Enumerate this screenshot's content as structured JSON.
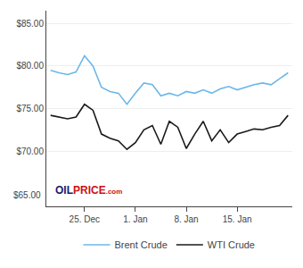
{
  "chart_data": {
    "type": "line",
    "categories": [
      null,
      null,
      null,
      null,
      "25. Dec",
      null,
      null,
      null,
      null,
      null,
      "1. Jan",
      null,
      null,
      null,
      null,
      null,
      "8. Jan",
      null,
      null,
      null,
      null,
      null,
      "15. Jan",
      null,
      null,
      null,
      null,
      null,
      null
    ],
    "series": [
      {
        "name": "Brent Crude",
        "color": "#6bb8e8",
        "values": [
          79.5,
          79.2,
          79.0,
          79.3,
          81.2,
          80.0,
          77.5,
          77.0,
          76.8,
          75.5,
          76.8,
          78.0,
          77.8,
          76.5,
          76.8,
          76.5,
          77.0,
          76.8,
          77.2,
          76.8,
          77.3,
          77.6,
          77.2,
          77.5,
          77.8,
          78.0,
          77.8,
          78.5,
          79.2
        ]
      },
      {
        "name": "WTI Crude",
        "color": "#1a1a1a",
        "values": [
          74.2,
          74.0,
          73.8,
          74.0,
          75.5,
          74.8,
          72.0,
          71.5,
          71.2,
          70.2,
          71.0,
          72.5,
          73.0,
          70.8,
          73.5,
          72.8,
          70.3,
          72.0,
          73.5,
          71.2,
          72.5,
          71.0,
          72.0,
          72.3,
          72.6,
          72.5,
          72.8,
          73.0,
          74.2
        ]
      }
    ],
    "ylim": [
      63.5,
      86.5
    ],
    "yticks": [
      {
        "value": 70,
        "label": "$70.00"
      },
      {
        "value": 75,
        "label": "$75.00"
      },
      {
        "value": 80,
        "label": "$80.00"
      },
      {
        "value": 85,
        "label": "$85.00"
      }
    ],
    "grid": true,
    "legend": "bottom",
    "annotations": [
      {
        "text": "$65.00"
      },
      {
        "text": "OIL",
        "color": "#1a1a6e"
      },
      {
        "text": "PRICE",
        "color": "#cc1111"
      },
      {
        "text": ".com",
        "color": "#cc1111"
      }
    ]
  }
}
